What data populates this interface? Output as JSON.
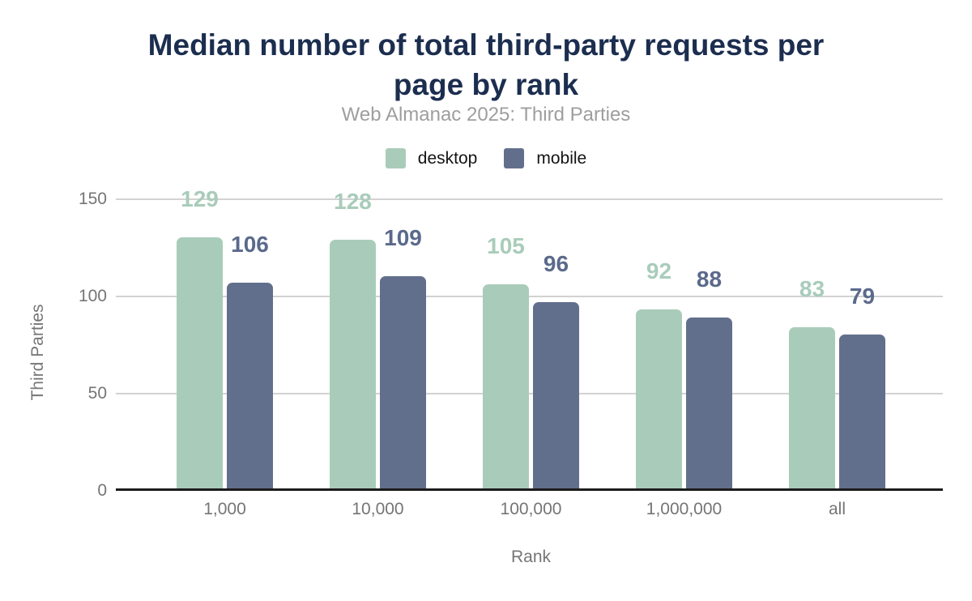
{
  "chart_data": {
    "type": "bar",
    "title": "Median number of total third-party requests per page by rank",
    "title_lines": [
      "Median number of total third-party requests per",
      "page by rank"
    ],
    "subtitle": "Web Almanac 2025: Third Parties",
    "categories": [
      "1,000",
      "10,000",
      "100,000",
      "1,000,000",
      "all"
    ],
    "series": [
      {
        "name": "desktop",
        "color": "#a9ccba",
        "label_color": "#a9ccba",
        "values": [
          129,
          128,
          105,
          92,
          83
        ]
      },
      {
        "name": "mobile",
        "color": "#626f8c",
        "label_color": "#5b6a8b",
        "values": [
          106,
          109,
          96,
          88,
          79
        ]
      }
    ],
    "xlabel": "Rank",
    "ylabel": "Third Parties",
    "yticks": [
      0,
      50,
      100,
      150
    ],
    "ylim": [
      0,
      150
    ],
    "grid": "horizontal",
    "legend_position": "top",
    "value_labels": "above bars"
  },
  "colors": {
    "title": "#1c2e4f",
    "subtitle": "#9e9e9e",
    "axis_text": "#757575",
    "legend_text": "#141414",
    "gridline": "#d2d2d2",
    "baseline": "#1c1c1c",
    "background": "#ffffff"
  }
}
